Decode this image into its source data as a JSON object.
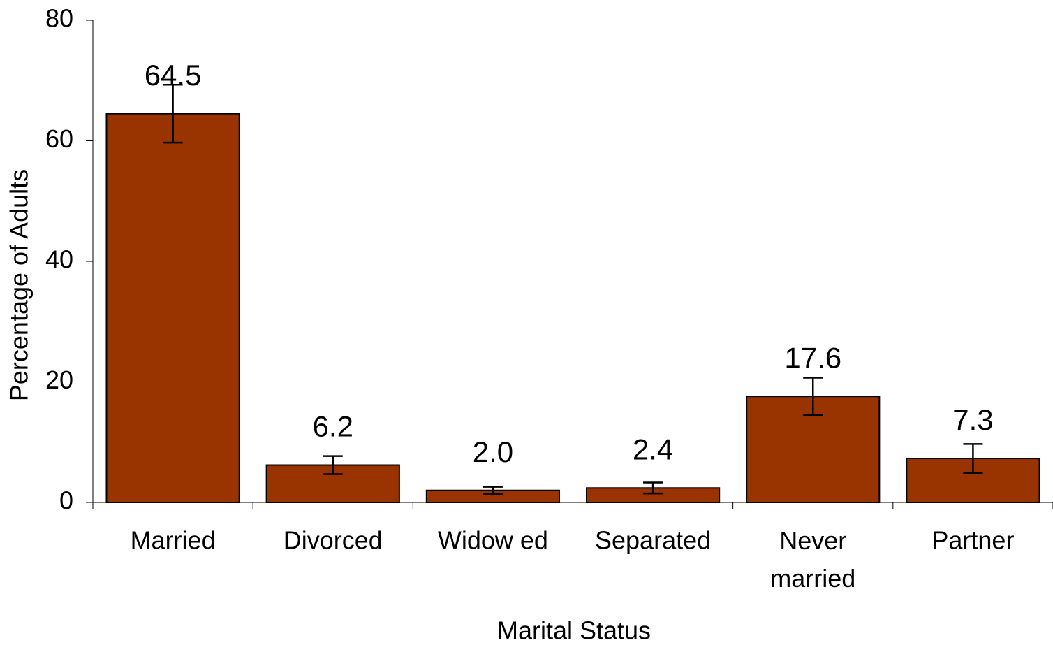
{
  "chart_data": {
    "type": "bar",
    "xlabel": "Marital Status",
    "ylabel": "Percentage of Adults",
    "categories": [
      "Married",
      "Divorced",
      "Widow ed",
      "Separated",
      "Never married",
      "Partner"
    ],
    "values": [
      64.5,
      6.2,
      2.0,
      2.4,
      17.6,
      7.3
    ],
    "value_labels": [
      "64.5",
      "6.2",
      "2.0",
      "2.4",
      "17.6",
      "7.3"
    ],
    "errors": [
      4.8,
      1.5,
      0.6,
      0.9,
      3.1,
      2.4
    ],
    "color": "#993300",
    "ylim": [
      0,
      80
    ],
    "yticks": [
      0,
      20,
      40,
      60,
      80
    ],
    "grid": false
  }
}
